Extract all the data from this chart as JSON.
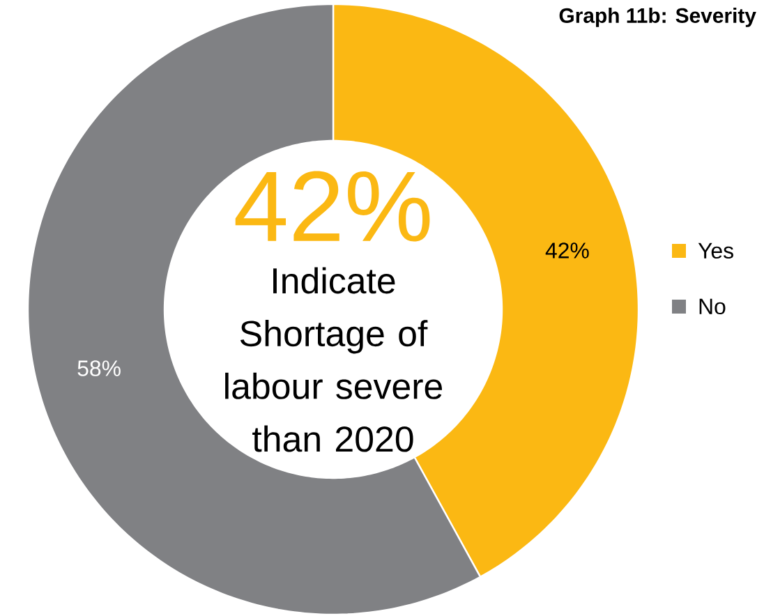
{
  "chart_data": {
    "type": "donut",
    "title": "Graph 11b: Severity",
    "categories": [
      "Yes",
      "No"
    ],
    "values": [
      42,
      58
    ],
    "colors": [
      "#fbb813",
      "#808184"
    ],
    "value_labels": [
      "42%",
      "58%"
    ],
    "legend": "right",
    "annotations": [
      "42%",
      "Indicate Shortage of labour severe than 2020"
    ]
  }
}
